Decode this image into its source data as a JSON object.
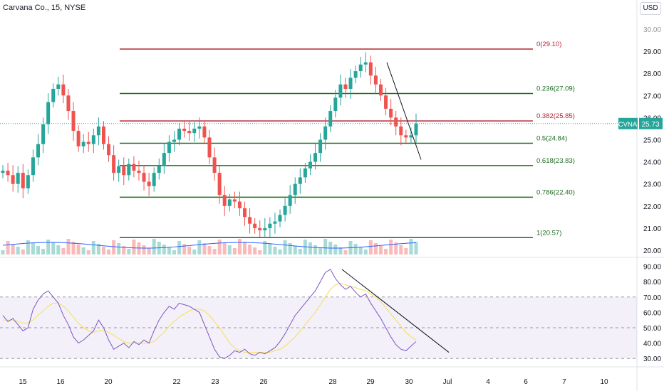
{
  "header": {
    "title": "Carvana Co., 15, NYSE",
    "currency_button": "USD"
  },
  "chart_data": [
    {
      "type": "candlestick",
      "symbol": "CVNA",
      "last_price": 25.73,
      "last_price_label": "25.73",
      "price_axis": {
        "ylim": [
          20,
          30
        ],
        "ticks": [
          "21.00",
          "22.00",
          "23.00",
          "24.00",
          "25.00",
          "26.00",
          "27.00",
          "28.00",
          "29.00"
        ],
        "top_tick_partial": "30.00",
        "bottom_tick": "20.00"
      },
      "time_axis": {
        "ticks": [
          "15",
          "16",
          "20",
          "22",
          "23",
          "26",
          "28",
          "29",
          "30",
          "Jul",
          "4",
          "6",
          "7",
          "10"
        ]
      },
      "fibonacci": [
        {
          "ratio": "0",
          "price": 29.1,
          "label": "0(29.10)",
          "color": "#b22833"
        },
        {
          "ratio": "0.236",
          "price": 27.09,
          "label": "0.236(27.09)",
          "color": "#1b6a1e"
        },
        {
          "ratio": "0.382",
          "price": 25.85,
          "label": "0.382(25.85)",
          "color": "#b22833"
        },
        {
          "ratio": "0.5",
          "price": 24.84,
          "label": "0.5(24.84)",
          "color": "#1b6a1e"
        },
        {
          "ratio": "0.618",
          "price": 23.83,
          "label": "0.618(23.83)",
          "color": "#1b6a1e"
        },
        {
          "ratio": "0.786",
          "price": 22.4,
          "label": "0.786(22.40)",
          "color": "#1b6a1e"
        },
        {
          "ratio": "1",
          "price": 20.57,
          "label": "1(20.57)",
          "color": "#1b6a1e"
        }
      ],
      "close_path": [
        23.6,
        23.4,
        23.0,
        23.5,
        22.8,
        23.4,
        24.2,
        24.8,
        25.7,
        26.7,
        27.3,
        27.5,
        27.0,
        26.3,
        25.4,
        24.7,
        24.9,
        24.8,
        25.2,
        25.6,
        24.8,
        24.3,
        23.5,
        23.8,
        23.4,
        23.9,
        23.6,
        23.5,
        23.1,
        22.9,
        23.5,
        23.8,
        24.4,
        24.9,
        25.0,
        25.5,
        25.4,
        25.3,
        25.5,
        25.6,
        25.1,
        24.2,
        23.5,
        22.5,
        22.0,
        22.3,
        22.2,
        21.9,
        21.5,
        21.2,
        21.0,
        20.9,
        21.0,
        21.2,
        21.3,
        21.6,
        22.0,
        22.5,
        23.0,
        23.3,
        23.7,
        24.0,
        24.4,
        25.0,
        25.6,
        26.3,
        26.9,
        27.5,
        27.3,
        27.8,
        28.1,
        28.4,
        28.5,
        27.9,
        27.5,
        27.0,
        26.4,
        26.0,
        25.6,
        25.2,
        25.1,
        25.2,
        25.73
      ],
      "trendline": {
        "from": 28.5,
        "to": 24.1
      }
    },
    {
      "type": "line",
      "name": "RSI",
      "ylim": [
        25,
        92
      ],
      "ticks": [
        "90.00",
        "80.00",
        "70.00",
        "60.00",
        "50.00",
        "40.00",
        "30.00"
      ],
      "band": [
        30,
        70
      ],
      "midline": 50,
      "values": [
        58,
        54,
        56,
        52,
        48,
        50,
        62,
        68,
        72,
        74,
        70,
        66,
        58,
        52,
        44,
        40,
        42,
        45,
        48,
        55,
        50,
        42,
        36,
        38,
        40,
        37,
        41,
        39,
        42,
        40,
        48,
        55,
        60,
        64,
        62,
        66,
        65,
        64,
        62,
        60,
        52,
        44,
        36,
        31,
        30,
        32,
        35,
        34,
        36,
        33,
        32,
        34,
        33,
        35,
        37,
        41,
        46,
        52,
        58,
        62,
        66,
        70,
        74,
        80,
        86,
        88,
        82,
        78,
        75,
        77,
        73,
        70,
        72,
        66,
        61,
        56,
        50,
        44,
        39,
        36,
        35,
        38,
        41
      ],
      "ma_values": [
        55,
        55,
        55,
        54,
        53,
        53,
        55,
        58,
        61,
        64,
        66,
        66,
        64,
        61,
        57,
        53,
        50,
        48,
        47,
        48,
        48,
        47,
        45,
        43,
        41,
        40,
        40,
        40,
        40,
        40,
        41,
        44,
        47,
        51,
        54,
        57,
        59,
        61,
        62,
        62,
        61,
        58,
        54,
        50,
        45,
        40,
        37,
        35,
        34,
        34,
        34,
        34,
        34,
        34,
        35,
        36,
        38,
        41,
        44,
        48,
        52,
        56,
        60,
        65,
        70,
        75,
        78,
        79,
        78,
        77,
        76,
        75,
        74,
        72,
        70,
        67,
        63,
        59,
        55,
        51,
        47,
        44,
        42
      ],
      "trendline": {
        "from": 88,
        "to": 34
      }
    }
  ]
}
